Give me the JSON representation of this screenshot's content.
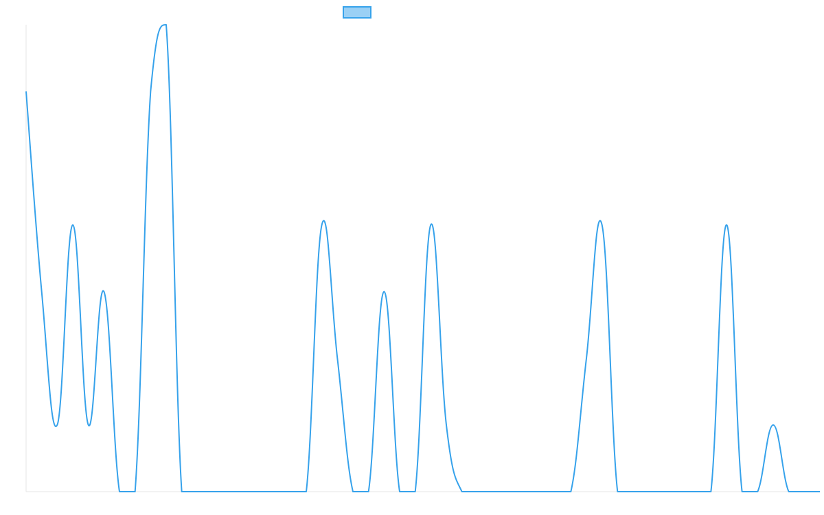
{
  "chart_data": {
    "type": "line",
    "title": "",
    "xlabel": "",
    "ylabel": "",
    "legend": {
      "position": "top-center",
      "entries": [
        ""
      ]
    },
    "grid": false,
    "colors": {
      "line": "#36a2eb",
      "fill": "#9ad0f5",
      "axis": "#e5e5e5"
    },
    "ylim": [
      0,
      7
    ],
    "series": [
      {
        "name": "",
        "values": [
          6,
          3,
          1,
          4,
          1,
          3,
          0,
          0,
          6,
          7,
          0,
          0,
          0,
          0,
          0,
          0,
          0,
          0,
          0,
          4,
          2,
          0,
          0,
          3,
          0,
          0,
          4,
          1,
          0,
          0,
          0,
          0,
          0,
          0,
          0,
          0,
          2,
          4,
          0,
          0,
          0,
          0,
          0,
          0,
          0,
          4,
          0,
          0,
          1,
          0,
          0,
          0
        ]
      }
    ]
  }
}
